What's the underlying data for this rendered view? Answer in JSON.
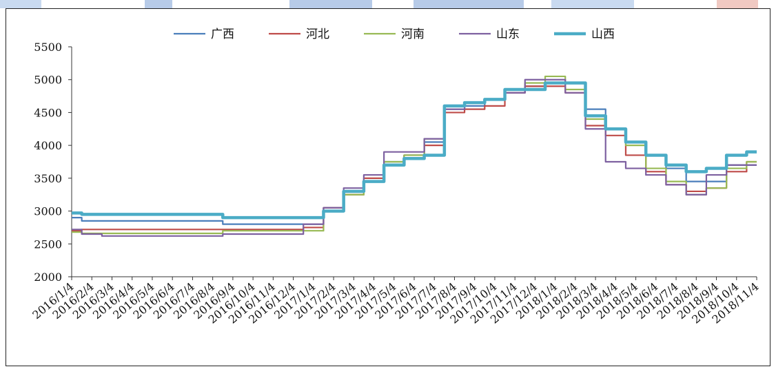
{
  "chart_data": {
    "type": "line",
    "title": "",
    "xlabel": "",
    "ylabel": "",
    "ylim": [
      2000,
      5500
    ],
    "yticks": [
      2000,
      2500,
      3000,
      3500,
      4000,
      4500,
      5000,
      5500
    ],
    "grid": false,
    "legend_position": "top",
    "categories": [
      "2016/1/4",
      "2016/2/4",
      "2016/3/4",
      "2016/4/4",
      "2016/5/4",
      "2016/6/4",
      "2016/7/4",
      "2016/8/4",
      "2016/9/4",
      "2016/10/4",
      "2016/11/4",
      "2016/12/4",
      "2017/1/4",
      "2017/2/4",
      "2017/3/4",
      "2017/4/4",
      "2017/5/4",
      "2017/6/4",
      "2017/7/4",
      "2017/8/4",
      "2017/9/4",
      "2017/10/4",
      "2017/11/4",
      "2017/12/4",
      "2018/1/4",
      "2018/2/4",
      "2018/3/4",
      "2018/4/4",
      "2018/5/4",
      "2018/6/4",
      "2018/7/4",
      "2018/8/4",
      "2018/9/4",
      "2018/10/4",
      "2018/11/4"
    ],
    "series": [
      {
        "name": "广西",
        "color": "#4a7ebb",
        "width": 2.2,
        "values": [
          2900,
          2850,
          2850,
          2850,
          2850,
          2850,
          2850,
          2850,
          2800,
          2800,
          2800,
          2800,
          2800,
          3050,
          3300,
          3450,
          3750,
          3850,
          4050,
          4550,
          4600,
          4700,
          4800,
          4900,
          4950,
          4950,
          4550,
          4250,
          4050,
          3850,
          3650,
          3450,
          3450,
          3700,
          3700
        ]
      },
      {
        "name": "河北",
        "color": "#be4b48",
        "width": 2.2,
        "values": [
          2700,
          2720,
          2720,
          2720,
          2720,
          2720,
          2720,
          2720,
          2720,
          2720,
          2720,
          2720,
          2750,
          3050,
          3250,
          3500,
          3700,
          3850,
          4000,
          4500,
          4550,
          4600,
          4800,
          4900,
          4900,
          4800,
          4300,
          4150,
          3850,
          3600,
          3400,
          3300,
          3350,
          3600,
          3750
        ]
      },
      {
        "name": "河南",
        "color": "#98b954",
        "width": 2.2,
        "values": [
          2680,
          2660,
          2660,
          2660,
          2660,
          2660,
          2660,
          2660,
          2700,
          2700,
          2700,
          2700,
          2700,
          3000,
          3250,
          3450,
          3750,
          3850,
          4100,
          4600,
          4650,
          4700,
          4850,
          4950,
          5050,
          4850,
          4400,
          4250,
          4000,
          3650,
          3450,
          3250,
          3350,
          3650,
          3750
        ]
      },
      {
        "name": "山东",
        "color": "#7d60a0",
        "width": 2.2,
        "values": [
          2720,
          2650,
          2620,
          2620,
          2620,
          2620,
          2620,
          2620,
          2650,
          2650,
          2650,
          2650,
          2800,
          3050,
          3350,
          3550,
          3900,
          3900,
          4100,
          4550,
          4650,
          4700,
          4800,
          5000,
          5000,
          4800,
          4250,
          3750,
          3650,
          3550,
          3400,
          3250,
          3550,
          3700,
          3700
        ]
      },
      {
        "name": "山西",
        "color": "#4bacc6",
        "width": 4.5,
        "values": [
          2970,
          2950,
          2950,
          2950,
          2950,
          2950,
          2950,
          2950,
          2900,
          2900,
          2900,
          2900,
          2900,
          3000,
          3300,
          3450,
          3700,
          3800,
          3850,
          4600,
          4650,
          4700,
          4850,
          4850,
          4950,
          4950,
          4450,
          4250,
          4050,
          3850,
          3700,
          3600,
          3650,
          3850,
          3900
        ]
      }
    ]
  }
}
